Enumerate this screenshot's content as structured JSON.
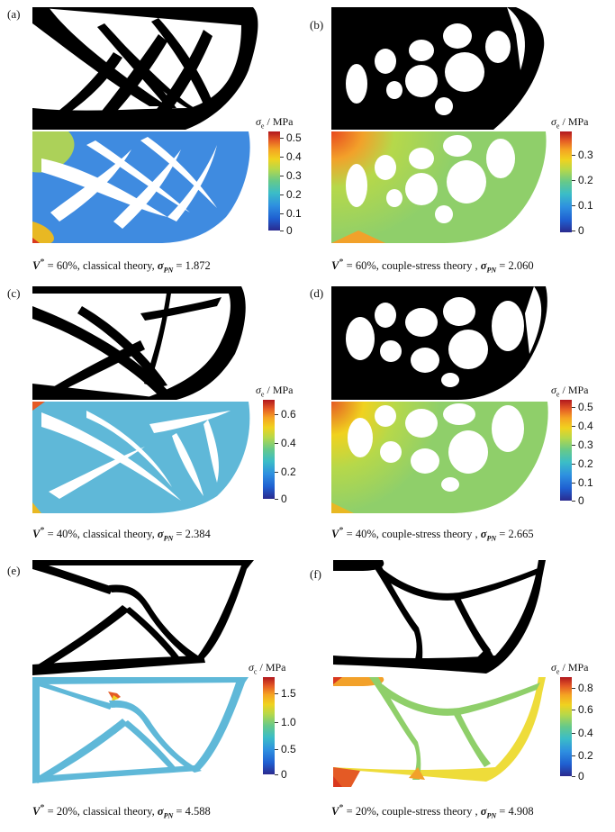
{
  "panels": [
    {
      "id": "a",
      "label": "(a)",
      "unit": "/ MPa",
      "ticks": [
        "0.5",
        "0.4",
        "0.3",
        "0.2",
        "0.1",
        "0"
      ],
      "caption": {
        "vol": "= 60%, classical theory,",
        "value": "1.872"
      }
    },
    {
      "id": "b",
      "label": "(b)",
      "unit": "/ MPa",
      "ticks": [
        "0.3",
        "0.2",
        "0.1",
        "0"
      ],
      "caption": {
        "vol": "= 60%, couple-stress theory ,",
        "value": "2.060"
      }
    },
    {
      "id": "c",
      "label": "(c)",
      "unit": "/ MPa",
      "ticks": [
        "0.6",
        "0.4",
        "0.2",
        "0"
      ],
      "caption": {
        "vol": "= 40%, classical theory,",
        "value": "2.384"
      }
    },
    {
      "id": "d",
      "label": "(d)",
      "unit": "/ MPa",
      "ticks": [
        "0.5",
        "0.4",
        "0.3",
        "0.2",
        "0.1",
        "0"
      ],
      "caption": {
        "vol": "= 40%, couple-stress theory ,",
        "value": "2.665"
      }
    },
    {
      "id": "e",
      "label": "(e)",
      "unit": "/ MPa",
      "ticks": [
        "1.5",
        "1.0",
        "0.5",
        "0"
      ],
      "caption": {
        "vol": "= 20%, classical theory,",
        "value": "4.588"
      }
    },
    {
      "id": "f",
      "label": "(f)",
      "unit": "/ MPa",
      "ticks": [
        "0.8",
        "0.6",
        "0.4",
        "0.2",
        "0"
      ],
      "caption": {
        "vol": "= 20%, couple-stress theory ,",
        "value": "4.908"
      }
    }
  ],
  "colors": {
    "blue": "#2e7bd6",
    "cyan": "#5fb8d8",
    "green": "#8fcf6a",
    "yellow": "#eedc3a",
    "orange": "#f2a12a",
    "red": "#d9381e",
    "black": "#000000"
  }
}
